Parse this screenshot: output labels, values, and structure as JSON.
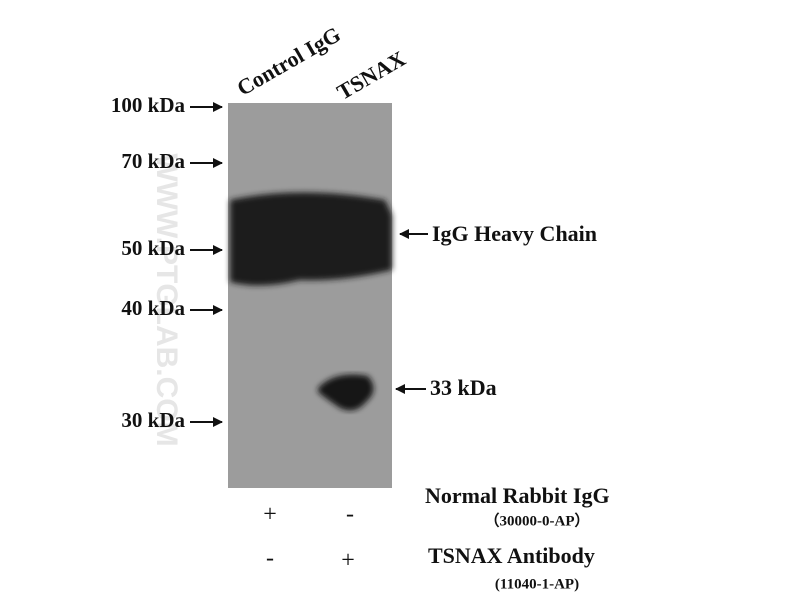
{
  "lanes": [
    "Control IgG",
    "TSNAX"
  ],
  "markers": [
    "100 kDa",
    "70 kDa",
    "50 kDa",
    "40 kDa",
    "30 kDa"
  ],
  "annotations": [
    "IgG Heavy Chain",
    "33 kDa"
  ],
  "watermark": "WWW.PTGLAB.COM",
  "conditions": [
    {
      "name": "Normal Rabbit IgG",
      "catalog": "（30000-0-AP）",
      "lanes": [
        "+",
        "-"
      ]
    },
    {
      "name": "TSNAX Antibody",
      "catalog": "(11040-1-AP)",
      "lanes": [
        "-",
        "+"
      ]
    }
  ]
}
